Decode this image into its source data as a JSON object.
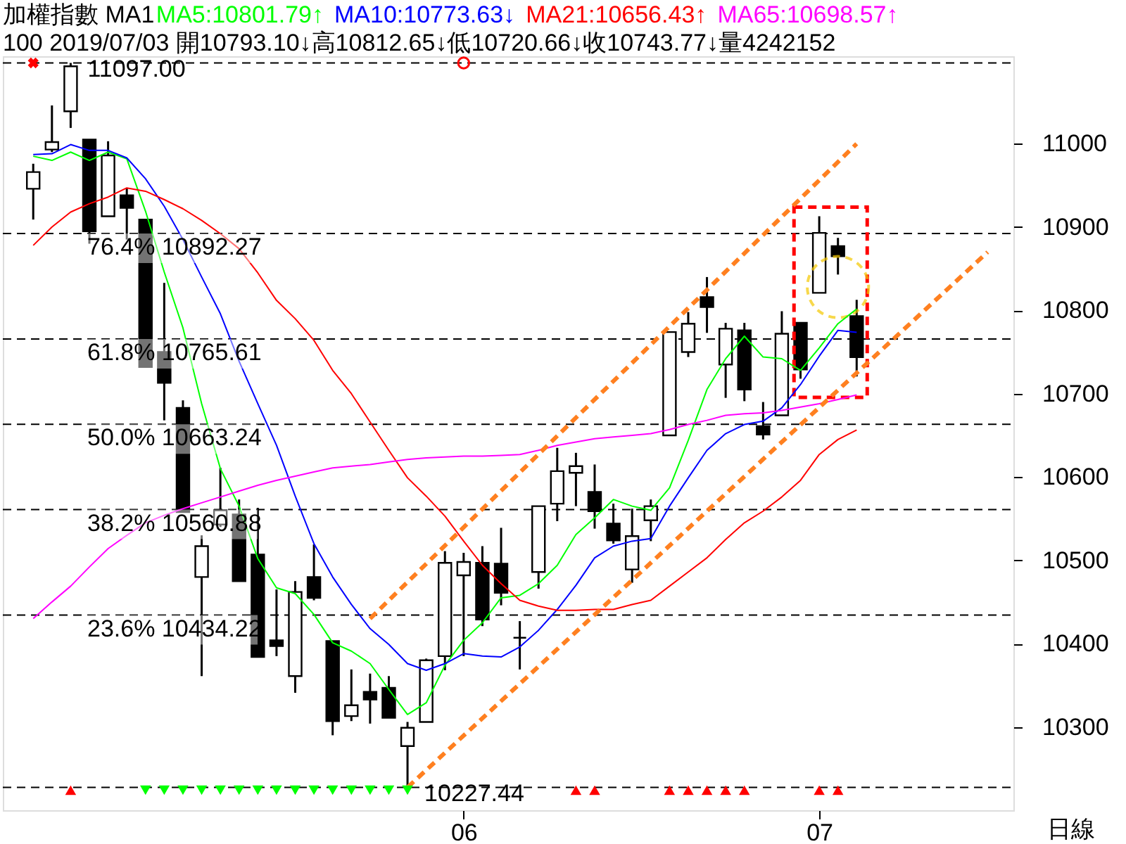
{
  "chart_data": {
    "type": "candlestick",
    "title": "加權指數 MA1",
    "subtitle": "100 2019/07/03 開10793.10↓高10812.65↓低10720.66↓收10743.77↓量4242152",
    "categories": [
      null,
      null,
      null,
      null,
      null,
      null,
      null,
      null,
      null,
      null,
      null,
      null,
      null,
      null,
      null,
      null,
      null,
      null,
      null,
      null,
      null,
      null,
      null,
      "06",
      null,
      null,
      null,
      null,
      null,
      null,
      null,
      null,
      null,
      null,
      null,
      null,
      null,
      null,
      null,
      null,
      null,
      null,
      "07",
      null,
      null,
      null,
      null,
      null,
      null,
      null,
      null,
      null,
      null
    ],
    "ohlc": [
      [
        10946,
        10976,
        10909,
        10966
      ],
      [
        10993,
        11046,
        10990,
        11002
      ],
      [
        11039,
        11097,
        11019,
        11093
      ],
      [
        11005,
        11005,
        10880,
        10895
      ],
      [
        10913,
        11003,
        10913,
        10986
      ],
      [
        10938,
        10947,
        10885,
        10923
      ],
      [
        10909,
        10909,
        10732,
        10732
      ],
      [
        10750,
        10833,
        10668,
        10713
      ],
      [
        10683,
        10692,
        10558,
        10558
      ],
      [
        10480,
        10530,
        10361,
        10517
      ],
      [
        10543,
        10611,
        10540,
        10560
      ],
      [
        10555,
        10573,
        10475,
        10475
      ],
      [
        10507,
        10563,
        10384,
        10384
      ],
      [
        10404,
        10465,
        10385,
        10397
      ],
      [
        10361,
        10475,
        10341,
        10462
      ],
      [
        10480,
        10519,
        10452,
        10455
      ],
      [
        10403,
        10403,
        10290,
        10307
      ],
      [
        10313,
        10369,
        10307,
        10326
      ],
      [
        10342,
        10364,
        10304,
        10333
      ],
      [
        10347,
        10361,
        10311,
        10311
      ],
      [
        10277,
        10306,
        10227.44,
        10299
      ],
      [
        10306,
        10382,
        10306,
        10380
      ],
      [
        10385,
        10511,
        10368,
        10497
      ],
      [
        10482,
        10509,
        10385,
        10498
      ],
      [
        10497,
        10517,
        10421,
        10429
      ],
      [
        10496,
        10539,
        10446,
        10461
      ],
      [
        10407,
        10427,
        10369,
        10407
      ],
      [
        10486,
        10565,
        10466,
        10565
      ],
      [
        10568,
        10635,
        10547,
        10607
      ],
      [
        10605,
        10629,
        10565,
        10613
      ],
      [
        10582,
        10615,
        10538,
        10559
      ],
      [
        10544,
        10568,
        10520,
        10524
      ],
      [
        10489,
        10562,
        10473,
        10529
      ],
      [
        10548,
        10573,
        10523,
        10565
      ],
      [
        10650,
        10774,
        10650,
        10774
      ],
      [
        10750,
        10798,
        10744,
        10784
      ],
      [
        10816,
        10840,
        10773,
        10804
      ],
      [
        10735,
        10785,
        10695,
        10778
      ],
      [
        10776,
        10785,
        10691,
        10705
      ],
      [
        10661,
        10690,
        10645,
        10651
      ],
      [
        10674,
        10799,
        10674,
        10772
      ],
      [
        10785,
        10785,
        10718,
        10729
      ],
      [
        10821,
        10913,
        10821,
        10893
      ],
      [
        10877,
        10887,
        10843,
        10865
      ],
      [
        10793.1,
        10812.65,
        10720.66,
        10743.77
      ],
      null,
      null,
      null,
      null,
      null,
      null,
      null,
      null
    ],
    "series": [
      {
        "type": "line",
        "name": "MA5:10801.79↑",
        "color": "#00ff00",
        "values": [
          10985,
          10980,
          10990,
          10980,
          10990,
          10982,
          10919,
          10846,
          10779,
          10688,
          10610,
          10565,
          10502,
          10467,
          10460,
          10435,
          10401,
          10391,
          10376,
          10345,
          10315,
          10329,
          10374,
          10404,
          10425,
          10455,
          10458,
          10472,
          10494,
          10531,
          10551,
          10573,
          10565,
          10560,
          10587,
          10644,
          10705,
          10742,
          10769,
          10744,
          10742,
          10728,
          10755,
          10784,
          10801.79,
          null,
          null,
          null,
          null,
          null,
          null,
          null,
          null
        ]
      },
      {
        "type": "line",
        "name": "MA10:10773.63↓",
        "color": "#0000ff",
        "values": [
          10987,
          10988,
          10999,
          10992,
          10992,
          10983,
          10958,
          10925,
          10885,
          10840,
          10796,
          10739,
          10688,
          10638,
          10577,
          10520,
          10480,
          10447,
          10418,
          10399,
          10376,
          10368,
          10376,
          10388,
          10385,
          10384,
          10396,
          10416,
          10441,
          10470,
          10503,
          10517,
          10523,
          10526,
          10565,
          10599,
          10632,
          10652,
          10663,
          10667,
          10683,
          10711,
          10745,
          10776,
          10773.63,
          null,
          null,
          null,
          null,
          null,
          null,
          null,
          null
        ]
      },
      {
        "type": "line",
        "name": "MA21:10656.43↑",
        "color": "#ff0000",
        "values": [
          10878,
          10900,
          10918,
          10928,
          10936,
          10947,
          10943,
          10933,
          10922,
          10908,
          10892,
          10874,
          10845,
          10812,
          10790,
          10764,
          10728,
          10700,
          10666,
          10632,
          10599,
          10577,
          10553,
          10523,
          10494,
          10472,
          10452,
          10445,
          10440,
          10440,
          10441,
          10441,
          10447,
          10452,
          10469,
          10486,
          10503,
          10525,
          10545,
          10559,
          10576,
          10596,
          10627,
          10645,
          10656.43,
          null,
          null,
          null,
          null,
          null,
          null,
          null,
          null
        ]
      },
      {
        "type": "line",
        "name": "MA65:10698.57↑",
        "color": "#ff00ff",
        "values": [
          10430,
          10450,
          10469,
          10492,
          10514,
          10530,
          10545,
          10554,
          10562,
          10569,
          10576,
          10583,
          10590,
          10596,
          10601,
          10606,
          10611,
          10613,
          10615,
          10618,
          10621,
          10623,
          10624,
          10625,
          10625,
          10626,
          10627,
          10632,
          10638,
          10642,
          10646,
          10648,
          10650,
          10652,
          10657,
          10663,
          10668,
          10674,
          10676,
          10677,
          10680,
          10684,
          10688,
          10693,
          10698.57,
          null,
          null,
          null,
          null,
          null,
          null,
          null,
          null
        ]
      },
      {
        "type": "line",
        "color": "#ff8020",
        "line_style": "dashed",
        "values": [
          null,
          null,
          null,
          null,
          null,
          null,
          null,
          null,
          null,
          null,
          null,
          null,
          null,
          null,
          null,
          null,
          null,
          null,
          10430,
          null,
          null,
          null,
          null,
          null,
          null,
          null,
          null,
          null,
          null,
          null,
          null,
          null,
          null,
          null,
          null,
          null,
          null,
          null,
          null,
          null,
          null,
          null,
          null,
          null,
          11000,
          null,
          null,
          null,
          null,
          null,
          null,
          null,
          null
        ]
      },
      {
        "type": "line",
        "color": "#ff8020",
        "line_style": "dashed",
        "values": [
          null,
          null,
          null,
          null,
          null,
          null,
          null,
          null,
          null,
          null,
          null,
          null,
          null,
          null,
          null,
          null,
          null,
          null,
          null,
          null,
          10227.44,
          null,
          null,
          null,
          null,
          null,
          null,
          null,
          null,
          null,
          null,
          null,
          null,
          null,
          null,
          null,
          null,
          null,
          null,
          null,
          null,
          null,
          null,
          null,
          null,
          null,
          null,
          null,
          null,
          null,
          null,
          10870,
          null
        ]
      },
      {
        "type": "scatter",
        "color": "#ff0000",
        "marker": "triangle",
        "values": [
          null,
          null,
          10224,
          null,
          null,
          null,
          null,
          null,
          null,
          null,
          null,
          null,
          null,
          null,
          null,
          null,
          null,
          null,
          null,
          null,
          null,
          null,
          null,
          null,
          null,
          null,
          null,
          null,
          null,
          10224,
          10224,
          null,
          null,
          null,
          10224,
          10224,
          10224,
          10224,
          10224,
          null,
          null,
          null,
          10224,
          10224,
          null,
          null,
          null,
          null,
          null,
          null,
          null,
          null,
          null
        ]
      },
      {
        "type": "scatter",
        "color": "#00ff00",
        "marker": "triangle-down",
        "values": [
          null,
          null,
          null,
          null,
          null,
          null,
          10224,
          10224,
          10224,
          10224,
          10224,
          10224,
          10224,
          10224,
          10224,
          10224,
          10224,
          10224,
          10224,
          10224,
          10224,
          null,
          null,
          null,
          null,
          null,
          null,
          null,
          null,
          null,
          null,
          null,
          null,
          null,
          null,
          null,
          null,
          null,
          null,
          null,
          null,
          null,
          null,
          null,
          null,
          null,
          null,
          null,
          null,
          null,
          null,
          null,
          null
        ]
      },
      {
        "type": "scatter",
        "color": "#ff0000",
        "marker": "cross",
        "values": [
          11097,
          null,
          null,
          null,
          null,
          null,
          null,
          null,
          null,
          null,
          null,
          null,
          null,
          null,
          null,
          null,
          null,
          null,
          null,
          null,
          null,
          null,
          null,
          null,
          null,
          null,
          null,
          null,
          null,
          null,
          null,
          null,
          null,
          null,
          null,
          null,
          null,
          null,
          null,
          null,
          null,
          null,
          null,
          null,
          null,
          null,
          null,
          null,
          null,
          null,
          null,
          null,
          null
        ]
      },
      {
        "type": "scatter",
        "color": "#ff0000",
        "marker": "circle",
        "values": [
          null,
          null,
          null,
          null,
          null,
          null,
          null,
          null,
          null,
          null,
          null,
          null,
          null,
          null,
          null,
          null,
          null,
          null,
          null,
          null,
          null,
          null,
          null,
          11097,
          null,
          null,
          null,
          null,
          null,
          null,
          null,
          null,
          null,
          null,
          null,
          null,
          null,
          null,
          null,
          null,
          null,
          null,
          null,
          null,
          null,
          null,
          null,
          null,
          null,
          null,
          null,
          null,
          null
        ]
      }
    ],
    "ylim": [
      10200,
      11105
    ],
    "yticks": [
      10300,
      10400,
      10500,
      10600,
      10700,
      10800,
      10900,
      11000
    ],
    "ref_lines": [
      {
        "axis": "y",
        "value": 11097.0,
        "line_style": "dashed"
      },
      {
        "axis": "y",
        "value": 10892.27,
        "label": "76.4% 10892.27",
        "line_style": "dashed"
      },
      {
        "axis": "y",
        "value": 10765.61,
        "label": "61.8% 10765.61",
        "line_style": "dashed"
      },
      {
        "axis": "y",
        "value": 10663.24,
        "label": "50.0% 10663.24",
        "line_style": "dashed"
      },
      {
        "axis": "y",
        "value": 10560.88,
        "label": "38.2% 10560.88",
        "line_style": "dashed"
      },
      {
        "axis": "y",
        "value": 10434.22,
        "label": "23.6% 10434.22",
        "line_style": "dashed"
      },
      {
        "axis": "y",
        "value": 10227.44,
        "line_style": "dashed"
      }
    ],
    "annotations": [
      {
        "text": "11097.00",
        "y": 11097.0
      },
      {
        "text": "10227.44",
        "y": 10227.44
      },
      "日線"
    ],
    "legend": "top"
  }
}
